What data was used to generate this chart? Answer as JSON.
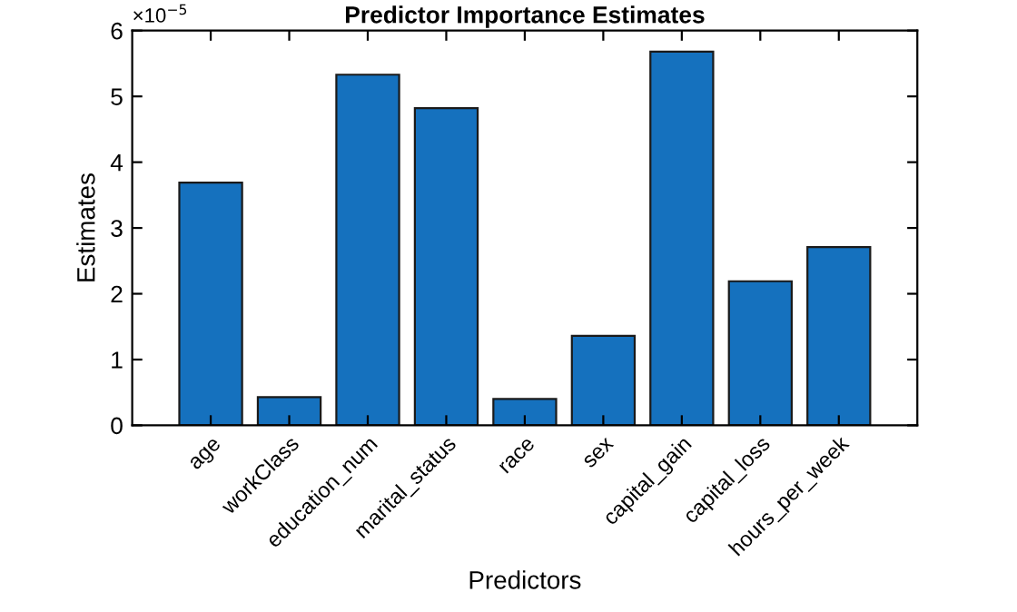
{
  "chart_data": {
    "type": "bar",
    "title": "Predictor Importance Estimates",
    "xlabel": "Predictors",
    "ylabel": "Estimates",
    "categories": [
      "age",
      "workClass",
      "education_num",
      "marital_status",
      "race",
      "sex",
      "capital_gain",
      "capital_loss",
      "hours_per_week"
    ],
    "values": [
      3.69,
      0.43,
      5.33,
      4.82,
      0.4,
      1.36,
      5.68,
      2.19,
      2.71
    ],
    "color": "#1571be",
    "ylim": [
      0,
      6
    ],
    "yticks": [
      0,
      1,
      2,
      3,
      4,
      5,
      6
    ],
    "annotations": [
      "×10$^{−5}$"
    ],
    "grid": false
  }
}
